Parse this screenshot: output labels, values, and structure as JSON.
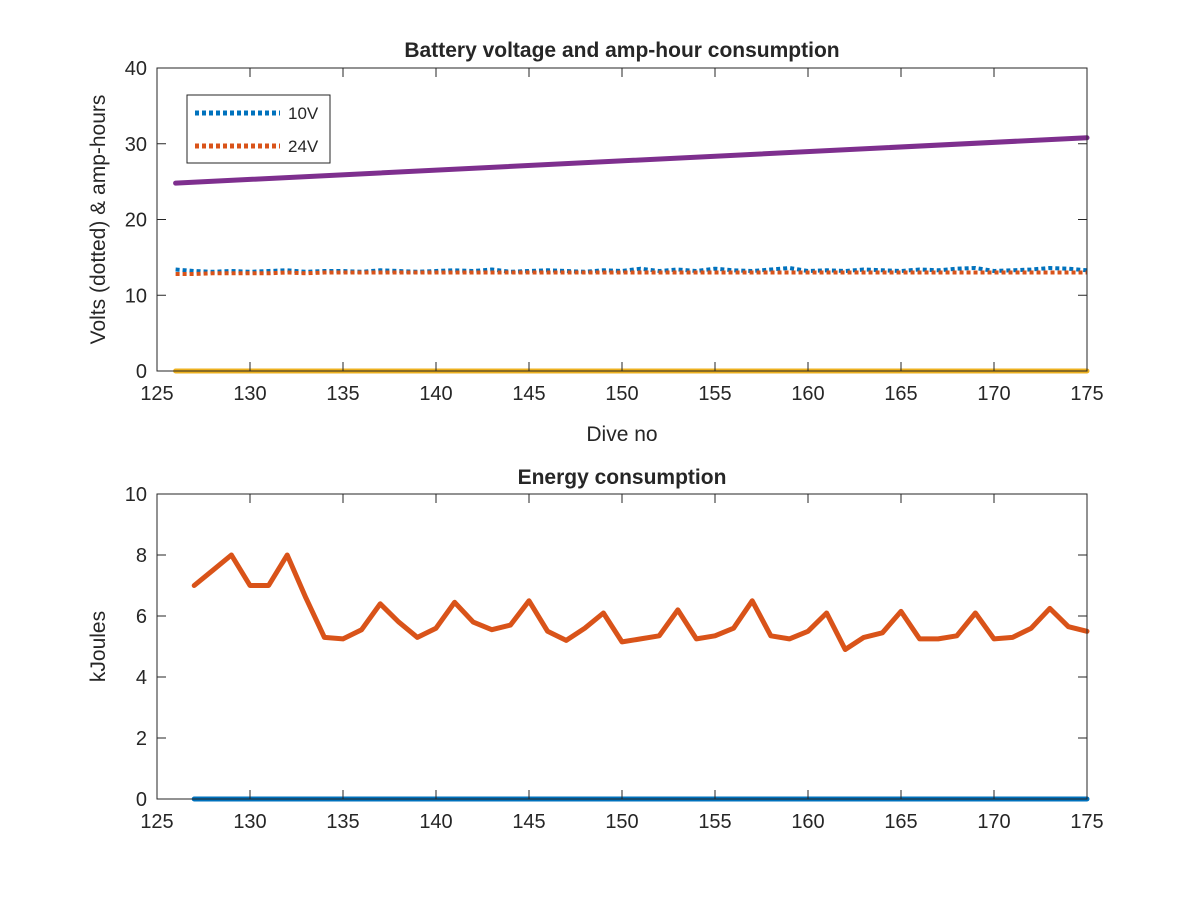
{
  "chart_data": [
    {
      "type": "line",
      "title": "Battery voltage and amp-hour consumption",
      "xlabel": "Dive no",
      "ylabel": "Volts (dotted) & amp-hours",
      "xlim": [
        125,
        175
      ],
      "ylim": [
        0,
        40
      ],
      "xticks": [
        "125",
        "130",
        "135",
        "140",
        "145",
        "150",
        "155",
        "160",
        "165",
        "170",
        "175"
      ],
      "yticks": [
        "0",
        "10",
        "20",
        "30",
        "40"
      ],
      "legend_position": "top-left",
      "grid": false,
      "series": [
        {
          "name": "10V",
          "style": "dotted",
          "color": "#0072BD",
          "x": [
            126,
            127,
            128,
            129,
            130,
            131,
            132,
            133,
            134,
            135,
            136,
            137,
            138,
            139,
            140,
            141,
            142,
            143,
            144,
            145,
            146,
            147,
            148,
            149,
            150,
            151,
            152,
            153,
            154,
            155,
            156,
            157,
            158,
            159,
            160,
            161,
            162,
            163,
            164,
            165,
            166,
            167,
            168,
            169,
            170,
            171,
            172,
            173,
            174,
            175
          ],
          "values": [
            13.4,
            13.2,
            13.1,
            13.2,
            13.1,
            13.2,
            13.3,
            13.1,
            13.2,
            13.2,
            13.1,
            13.3,
            13.2,
            13.1,
            13.2,
            13.3,
            13.2,
            13.4,
            13.1,
            13.2,
            13.3,
            13.2,
            13.1,
            13.3,
            13.2,
            13.5,
            13.2,
            13.4,
            13.2,
            13.5,
            13.3,
            13.2,
            13.4,
            13.6,
            13.2,
            13.3,
            13.2,
            13.4,
            13.3,
            13.2,
            13.4,
            13.3,
            13.5,
            13.6,
            13.2,
            13.3,
            13.4,
            13.6,
            13.5,
            13.3
          ]
        },
        {
          "name": "24V",
          "style": "dotted",
          "color": "#D95319",
          "x": [
            126,
            127,
            128,
            129,
            130,
            131,
            132,
            133,
            134,
            135,
            136,
            137,
            138,
            139,
            140,
            141,
            142,
            143,
            144,
            145,
            146,
            147,
            148,
            149,
            150,
            151,
            152,
            153,
            154,
            155,
            156,
            157,
            158,
            159,
            160,
            161,
            162,
            163,
            164,
            165,
            166,
            167,
            168,
            169,
            170,
            171,
            172,
            173,
            174,
            175
          ],
          "values": [
            12.8,
            12.8,
            12.9,
            12.9,
            12.9,
            12.9,
            13.0,
            12.9,
            13.0,
            13.0,
            13.0,
            13.0,
            13.0,
            13.0,
            13.0,
            13.0,
            13.0,
            13.0,
            13.0,
            13.0,
            13.0,
            13.0,
            13.0,
            13.0,
            13.0,
            13.0,
            13.0,
            13.0,
            13.0,
            13.0,
            13.0,
            13.0,
            13.0,
            13.0,
            13.0,
            13.0,
            13.0,
            13.0,
            13.0,
            13.0,
            13.0,
            13.0,
            13.0,
            13.0,
            13.0,
            13.0,
            13.0,
            13.0,
            13.0,
            13.0
          ]
        },
        {
          "style": "solid",
          "color": "#EDB120",
          "x": [
            126,
            175
          ],
          "values": [
            0,
            0
          ]
        },
        {
          "style": "solid",
          "color": "#7E2F8E",
          "x": [
            126,
            175
          ],
          "values": [
            24.8,
            30.8
          ]
        }
      ]
    },
    {
      "type": "line",
      "title": "Energy consumption",
      "xlabel": "",
      "ylabel": "kJoules",
      "xlim": [
        125,
        175
      ],
      "ylim": [
        0,
        10
      ],
      "xticks": [
        "125",
        "130",
        "135",
        "140",
        "145",
        "150",
        "155",
        "160",
        "165",
        "170",
        "175"
      ],
      "yticks": [
        "0",
        "2",
        "4",
        "6",
        "8",
        "10"
      ],
      "grid": false,
      "series": [
        {
          "style": "solid",
          "color": "#0072BD",
          "x": [
            127,
            175
          ],
          "values": [
            0,
            0
          ]
        },
        {
          "style": "solid",
          "color": "#D95319",
          "x": [
            127,
            128,
            129,
            130,
            131,
            132,
            133,
            134,
            135,
            136,
            137,
            138,
            139,
            140,
            141,
            142,
            143,
            144,
            145,
            146,
            147,
            148,
            149,
            150,
            151,
            152,
            153,
            154,
            155,
            156,
            157,
            158,
            159,
            160,
            161,
            162,
            163,
            164,
            165,
            166,
            167,
            168,
            169,
            170,
            171,
            172,
            173,
            174,
            175
          ],
          "values": [
            7.0,
            7.5,
            8.0,
            7.0,
            7.0,
            8.0,
            6.6,
            5.3,
            5.25,
            5.55,
            6.4,
            5.8,
            5.3,
            5.6,
            6.45,
            5.8,
            5.55,
            5.7,
            6.5,
            5.5,
            5.2,
            5.6,
            6.1,
            5.15,
            5.25,
            5.35,
            6.2,
            5.25,
            5.35,
            5.6,
            6.5,
            5.35,
            5.25,
            5.5,
            6.1,
            4.9,
            5.3,
            5.45,
            6.15,
            5.25,
            5.25,
            5.35,
            6.1,
            5.25,
            5.3,
            5.6,
            6.25,
            5.65,
            5.5
          ]
        }
      ]
    }
  ]
}
